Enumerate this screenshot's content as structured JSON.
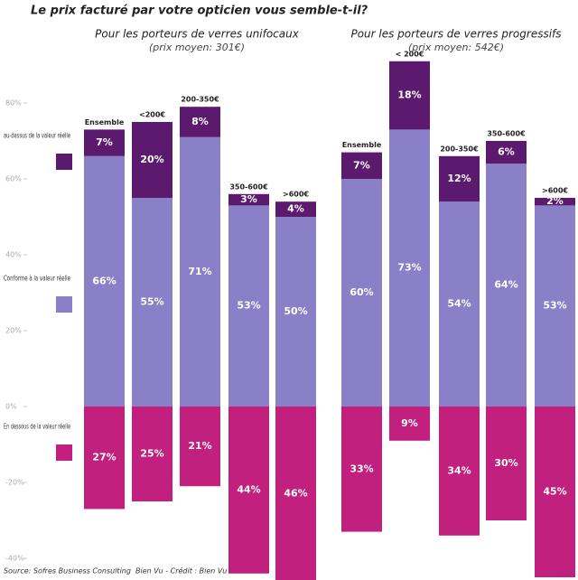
{
  "chart_data": {
    "type": "diverging-bar",
    "title": "Le prix facturé par votre opticien vous semble-t-il?",
    "subtitles": [
      {
        "title": "Pour les porteurs de verres unifocaux",
        "note": "(prix moyen: 301€)"
      },
      {
        "title": "Pour les porteurs de verres progressifs",
        "note": "(prix moyen: 542€)"
      }
    ],
    "categories": [
      "Ensemble",
      "<200€",
      "200-350€",
      "350-600€",
      ">600€",
      "Ensemble",
      "< 200€",
      "200-350€",
      "350-600€",
      ">600€"
    ],
    "series": [
      {
        "name": "au-dessus de la valeur réelle",
        "color": "#5b1a6e",
        "values": [
          7,
          20,
          8,
          3,
          4,
          7,
          18,
          12,
          6,
          2
        ],
        "value_labels": [
          "7%",
          "20%",
          "8%",
          "3%",
          "4%",
          "7%",
          "18%",
          "12%",
          "6%",
          "2%"
        ]
      },
      {
        "name": "Conforme à la valeur réelle",
        "color": "#8a80c8",
        "values": [
          66,
          55,
          71,
          53,
          50,
          60,
          73,
          54,
          64,
          53
        ],
        "value_labels": [
          "66%",
          "55%",
          "71%",
          "53%",
          "50%",
          "60%",
          "73%",
          "54%",
          "64%",
          "53%"
        ]
      },
      {
        "name": "En dessous de la valeur réelle",
        "color": "#c2207f",
        "values": [
          27,
          25,
          21,
          44,
          46,
          33,
          9,
          34,
          30,
          45
        ],
        "value_labels": [
          "27%",
          "25%",
          "21%",
          "44%",
          "46%",
          "33%",
          "9%",
          "34%",
          "30%",
          "45%"
        ]
      }
    ],
    "ylim": [
      -45,
      90
    ],
    "yticks": [
      {
        "value": 80,
        "label": "80%"
      },
      {
        "value": 60,
        "label": "60%"
      },
      {
        "value": 40,
        "label": "40%"
      },
      {
        "value": 20,
        "label": "20%"
      },
      {
        "value": 0,
        "label": "0%"
      },
      {
        "value": -20,
        "label": "-20%"
      },
      {
        "value": -40,
        "label": "-40%"
      }
    ],
    "source": "Source: Sofres Business Consulting",
    "credit": "Bien Vu - Crédit : Bien Vu"
  }
}
